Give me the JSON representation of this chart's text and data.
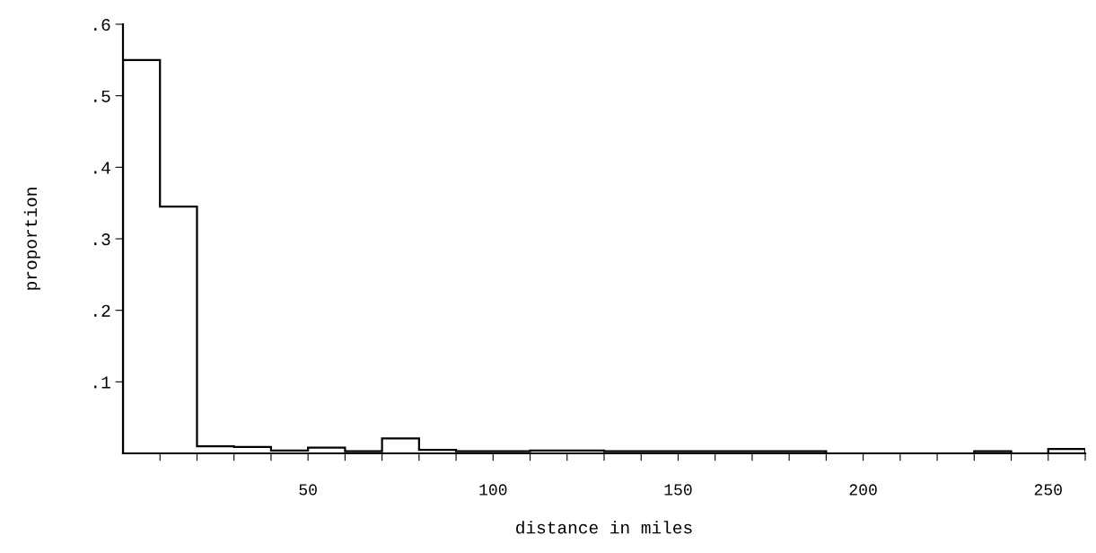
{
  "chart_data": {
    "type": "histogram",
    "xlabel": "distance in miles",
    "ylabel": "proportion",
    "bins": [
      0,
      10,
      20,
      30,
      40,
      50,
      60,
      70,
      80,
      90,
      100,
      110,
      120,
      130,
      140,
      150,
      160,
      170,
      180,
      190,
      200,
      210,
      220,
      230,
      240,
      250,
      260
    ],
    "values": [
      0.55,
      0.345,
      0.01,
      0.009,
      0.004,
      0.008,
      0.003,
      0.021,
      0.005,
      0.003,
      0.003,
      0.004,
      0.004,
      0.003,
      0.003,
      0.003,
      0.003,
      0.003,
      0.003,
      0,
      0,
      0,
      0,
      0.003,
      0,
      0.006
    ],
    "color": "#000000",
    "xlim": [
      0,
      260
    ],
    "ylim": [
      0,
      0.6
    ],
    "xticks": [
      {
        "value": 10,
        "label": null
      },
      {
        "value": 20,
        "label": null
      },
      {
        "value": 30,
        "label": null
      },
      {
        "value": 40,
        "label": null
      },
      50,
      {
        "value": 60,
        "label": null
      },
      {
        "value": 70,
        "label": null
      },
      {
        "value": 80,
        "label": null
      },
      {
        "value": 90,
        "label": null
      },
      100,
      {
        "value": 110,
        "label": null
      },
      {
        "value": 120,
        "label": null
      },
      {
        "value": 130,
        "label": null
      },
      {
        "value": 140,
        "label": null
      },
      150,
      {
        "value": 160,
        "label": null
      },
      {
        "value": 170,
        "label": null
      },
      {
        "value": 180,
        "label": null
      },
      {
        "value": 190,
        "label": null
      },
      200,
      {
        "value": 210,
        "label": null
      },
      {
        "value": 220,
        "label": null
      },
      {
        "value": 230,
        "label": null
      },
      {
        "value": 240,
        "label": null
      },
      250,
      {
        "value": 260,
        "label": null
      }
    ],
    "yticks": [
      {
        "value": 0.1,
        "label": ".1"
      },
      {
        "value": 0.2,
        "label": ".2"
      },
      {
        "value": 0.3,
        "label": ".3"
      },
      {
        "value": 0.4,
        "label": ".4"
      },
      {
        "value": 0.5,
        "label": ".5"
      },
      {
        "value": 0.6,
        "label": ".6"
      }
    ],
    "grid": false
  }
}
